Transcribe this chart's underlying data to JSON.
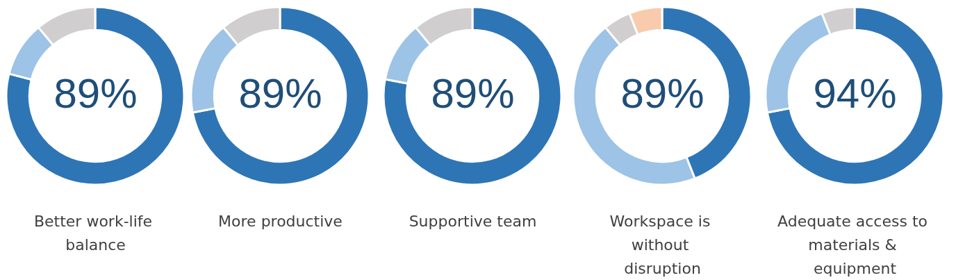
{
  "chart_data": [
    {
      "type": "donut",
      "title": "Better work-life balance",
      "annotations": [
        "89%"
      ],
      "categories": [
        null,
        null,
        null
      ],
      "values": [
        79,
        10,
        11
      ],
      "colors": [
        "#2e75b6",
        "#9dc3e6",
        "#d0cece"
      ]
    },
    {
      "type": "donut",
      "title": "More productive",
      "annotations": [
        "89%"
      ],
      "categories": [
        null,
        null,
        null
      ],
      "values": [
        72,
        17,
        11
      ],
      "colors": [
        "#2e75b6",
        "#9dc3e6",
        "#d0cece"
      ]
    },
    {
      "type": "donut",
      "title": "Supportive team",
      "annotations": [
        "89%"
      ],
      "categories": [
        null,
        null,
        null
      ],
      "values": [
        78,
        11,
        11
      ],
      "colors": [
        "#2e75b6",
        "#9dc3e6",
        "#d0cece"
      ]
    },
    {
      "type": "donut",
      "title": "Workspace is without disruption",
      "annotations": [
        "89%"
      ],
      "categories": [
        null,
        null,
        null,
        null
      ],
      "values": [
        44,
        45,
        5,
        6
      ],
      "colors": [
        "#2e75b6",
        "#9dc3e6",
        "#d0cece",
        "#f8cbad"
      ]
    },
    {
      "type": "donut",
      "title": "Adequate access to materials & equipment",
      "annotations": [
        "94%"
      ],
      "categories": [
        null,
        null,
        null
      ],
      "values": [
        72,
        22,
        6
      ],
      "colors": [
        "#2e75b6",
        "#9dc3e6",
        "#d0cece"
      ]
    }
  ]
}
